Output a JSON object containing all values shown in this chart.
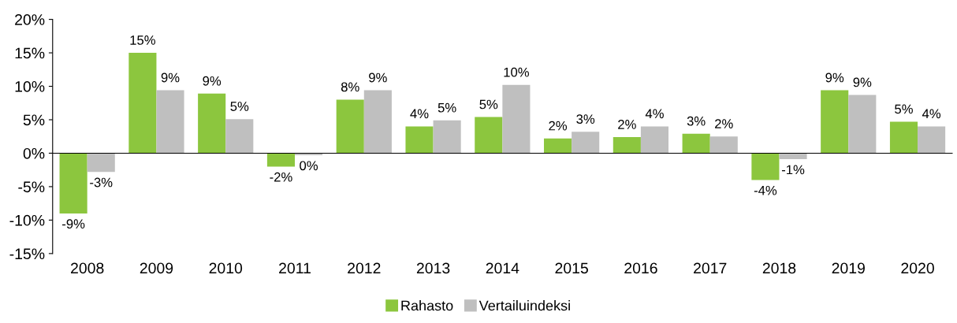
{
  "chart_data": {
    "type": "bar",
    "categories": [
      "2008",
      "2009",
      "2010",
      "2011",
      "2012",
      "2013",
      "2014",
      "2015",
      "2016",
      "2017",
      "2018",
      "2019",
      "2020"
    ],
    "series": [
      {
        "name": "Rahasto",
        "color": "#8cc63e",
        "values": [
          -9.0,
          15.0,
          8.9,
          -2.0,
          8.0,
          4.0,
          5.4,
          2.2,
          2.4,
          2.9,
          -4.0,
          9.4,
          4.7
        ],
        "value_labels": [
          "-9%",
          "15%",
          "9%",
          "-2%",
          "8%",
          "4%",
          "5%",
          "2%",
          "2%",
          "3%",
          "-4%",
          "9%",
          "5%"
        ]
      },
      {
        "name": "Vertailuindeksi",
        "color": "#bfbfbf",
        "values": [
          -2.8,
          9.4,
          5.1,
          -0.3,
          9.4,
          4.9,
          10.2,
          3.2,
          4.0,
          2.5,
          -0.9,
          8.7,
          4.0
        ],
        "value_labels": [
          "-3%",
          "9%",
          "5%",
          "0%",
          "9%",
          "5%",
          "10%",
          "3%",
          "4%",
          "2%",
          "-1%",
          "9%",
          "4%"
        ]
      }
    ],
    "ylim": [
      -15,
      20
    ],
    "yticks": [
      {
        "value": -15,
        "label": "-15%"
      },
      {
        "value": -10,
        "label": "-10%"
      },
      {
        "value": -5,
        "label": "-5%"
      },
      {
        "value": 0,
        "label": "0%"
      },
      {
        "value": 5,
        "label": "5%"
      },
      {
        "value": 10,
        "label": "10%"
      },
      {
        "value": 15,
        "label": "15%"
      },
      {
        "value": 20,
        "label": "20%"
      }
    ],
    "legend": "bottom"
  }
}
